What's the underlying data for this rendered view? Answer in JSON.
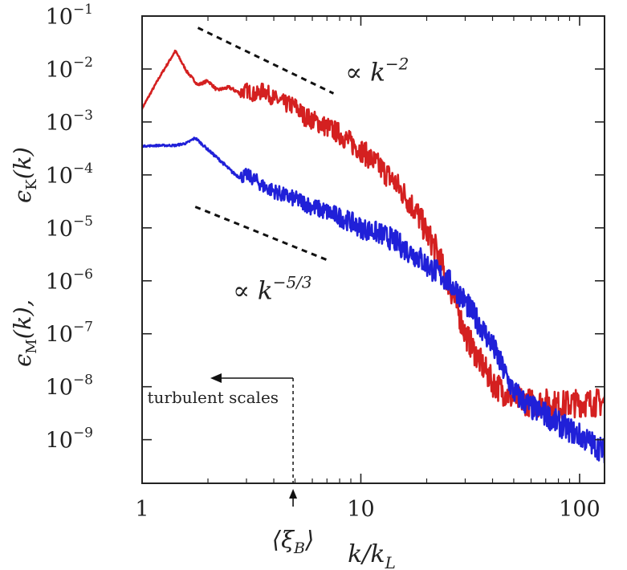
{
  "chart_data": {
    "type": "line",
    "xscale": "log",
    "yscale": "log",
    "xlim": [
      1,
      130
    ],
    "ylim": [
      1.5e-10,
      0.1
    ],
    "x_ticks": [
      {
        "value": 1,
        "label": "1"
      },
      {
        "value": 10,
        "label": "10"
      },
      {
        "value": 100,
        "label": "100"
      }
    ],
    "y_ticks": [
      {
        "value": 0.1,
        "base": "10",
        "exp": "−1"
      },
      {
        "value": 0.01,
        "base": "10",
        "exp": "−2"
      },
      {
        "value": 0.001,
        "base": "10",
        "exp": "−3"
      },
      {
        "value": 0.0001,
        "base": "10",
        "exp": "−4"
      },
      {
        "value": 1e-05,
        "base": "10",
        "exp": "−5"
      },
      {
        "value": 1e-06,
        "base": "10",
        "exp": "−6"
      },
      {
        "value": 1e-07,
        "base": "10",
        "exp": "−7"
      },
      {
        "value": 1e-08,
        "base": "10",
        "exp": "−8"
      },
      {
        "value": 1e-09,
        "base": "10",
        "exp": "−9"
      }
    ],
    "xlabel": "k/k",
    "xlabel_sub": "L",
    "ylabel_left": "ϵ",
    "ylabel_left_sub": "M",
    "ylabel_left_rest": "(k),",
    "ylabel_right": "ϵ",
    "ylabel_right_sub": "K",
    "ylabel_right_rest": "(k)",
    "series": [
      {
        "name": "ϵK(k)",
        "color": "#d42020",
        "x": [
          1,
          1.2,
          1.42,
          1.6,
          1.8,
          2.0,
          2.2,
          2.5,
          2.8,
          3.0,
          3.3,
          3.6,
          4.0,
          4.5,
          5,
          5.5,
          6,
          7,
          8,
          9,
          10,
          12,
          14,
          16,
          18,
          20,
          22,
          25,
          28,
          30,
          35,
          40,
          45,
          50,
          60,
          70,
          80,
          100,
          130
        ],
        "values": [
          0.0018,
          0.007,
          0.022,
          0.009,
          0.005,
          0.006,
          0.004,
          0.0045,
          0.0035,
          0.004,
          0.0032,
          0.004,
          0.0028,
          0.0022,
          0.002,
          0.0013,
          0.0011,
          0.0008,
          0.0006,
          0.0004,
          0.0003,
          0.00015,
          8e-05,
          4e-05,
          2e-05,
          8e-06,
          4e-06,
          1e-06,
          2.5e-07,
          1e-07,
          3e-08,
          1.2e-08,
          8e-09,
          6e-09,
          5e-09,
          5e-09,
          4.5e-09,
          5e-09,
          5e-09
        ],
        "noise": 0.18
      },
      {
        "name": "ϵM(k)",
        "color": "#2020d8",
        "x": [
          1,
          1.2,
          1.42,
          1.6,
          1.75,
          2.0,
          2.3,
          2.6,
          2.8,
          3.0,
          3.3,
          3.6,
          4.0,
          4.5,
          5,
          5.5,
          6,
          7,
          8,
          9,
          10,
          12,
          14,
          16,
          18,
          20,
          22,
          25,
          28,
          30,
          35,
          40,
          45,
          50,
          60,
          70,
          80,
          100,
          130
        ],
        "values": [
          0.00035,
          0.00036,
          0.00036,
          0.0004,
          0.0005,
          0.0003,
          0.00018,
          0.00011,
          9e-05,
          0.0001,
          8e-05,
          6e-05,
          5e-05,
          4e-05,
          3.5e-05,
          3e-05,
          2.5e-05,
          2e-05,
          1.6e-05,
          1.3e-05,
          1e-05,
          8e-06,
          6e-06,
          4e-06,
          3e-06,
          2e-06,
          1.5e-06,
          1e-06,
          6e-07,
          4e-07,
          1.5e-07,
          6e-08,
          2e-08,
          8e-09,
          4e-09,
          3e-09,
          2e-09,
          1.2e-09,
          6e-10
        ],
        "noise": 0.16
      }
    ],
    "reference_lines": [
      {
        "name": "k^-2",
        "x": [
          1.8,
          7.5
        ],
        "anchor_y": 0.06,
        "slope": -2
      },
      {
        "name": "k^-5/3",
        "x": [
          1.75,
          7.2
        ],
        "anchor_y": 2.5e-05,
        "slope": -1.6667
      }
    ],
    "annotations": {
      "k_minus_2": {
        "prefix": "∝ k",
        "exp": "−2",
        "x": 8.5,
        "y": 0.006
      },
      "k_minus_5_3": {
        "prefix": "∝ k",
        "exp": "−5/3",
        "x": 2.6,
        "y": 4.5e-07
      },
      "turbulent_scales": {
        "text": "turbulent scales",
        "x": 4.9,
        "y": 1e-08
      },
      "xi_b": {
        "text": "⟨ξ",
        "sub": "B",
        "close": "⟩",
        "x": 4.9
      }
    }
  }
}
